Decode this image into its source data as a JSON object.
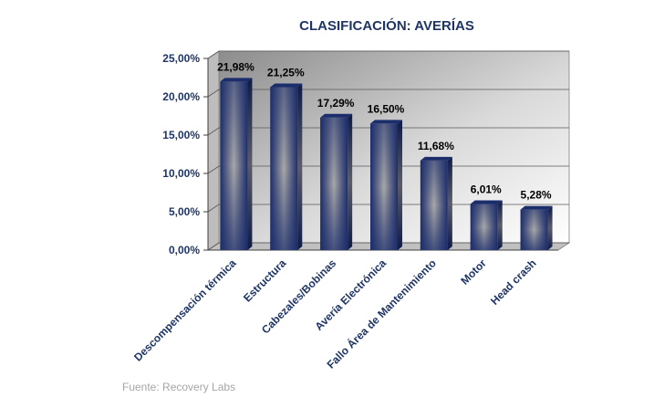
{
  "chart_data": {
    "type": "bar",
    "title": "CLASIFICACIÓN: AVERÍAS",
    "categories": [
      "Descompensación térmica",
      "Estructura",
      "Cabezales/Bobinas",
      "Avería Electrónica",
      "Fallo Área de Mantenimiento",
      "Motor",
      "Head crash"
    ],
    "values": [
      21.98,
      21.25,
      17.29,
      16.5,
      11.68,
      6.01,
      5.28
    ],
    "value_labels": [
      "21,98%",
      "21,25%",
      "17,29%",
      "16,50%",
      "11,68%",
      "6,01%",
      "5,28%"
    ],
    "ylim": [
      0,
      25
    ],
    "yticks": [
      0,
      5,
      10,
      15,
      20,
      25
    ],
    "ytick_labels": [
      "0,00%",
      "5,00%",
      "10,00%",
      "15,00%",
      "20,00%",
      "25,00%"
    ],
    "xlabel": "",
    "ylabel": "",
    "grid": true,
    "legend": "none",
    "colors": {
      "bar_dark": "#1c2d6b",
      "bar_light": "#a8a8a8",
      "text": "#1f3566"
    }
  },
  "source": "Fuente: Recovery Labs"
}
